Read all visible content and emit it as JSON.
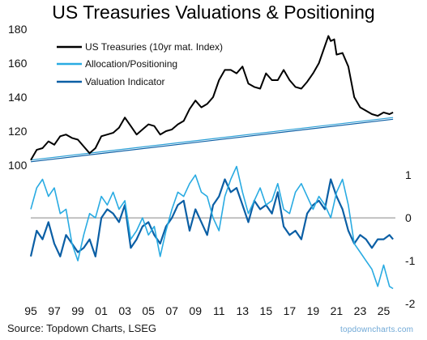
{
  "title": "US Treasuries Valuations & Positioning",
  "source": "Source: Topdown Charts, LSEG",
  "watermark": "topdowncharts.com",
  "colors": {
    "treasury": "#000000",
    "allocation": "#29abe2",
    "valuation": "#0b5fa5",
    "trend": "#2a9fd6",
    "zero": "#888888",
    "text": "#111111"
  },
  "chart_data": [
    {
      "type": "line",
      "panel": "top",
      "ylim": [
        100,
        180
      ],
      "yticks": [
        100,
        120,
        140,
        160,
        180
      ],
      "legend_position": "top-left",
      "series": [
        {
          "name": "US Treasuries (10yr mat. Index)",
          "x": [
            1995.0,
            1995.5,
            1996.0,
            1996.5,
            1997.0,
            1997.5,
            1998.0,
            1998.5,
            1999.0,
            1999.5,
            2000.0,
            2000.5,
            2001.0,
            2001.5,
            2002.0,
            2002.5,
            2003.0,
            2003.5,
            2004.0,
            2004.5,
            2005.0,
            2005.5,
            2006.0,
            2006.5,
            2007.0,
            2007.5,
            2008.0,
            2008.5,
            2009.0,
            2009.5,
            2010.0,
            2010.5,
            2011.0,
            2011.5,
            2012.0,
            2012.5,
            2013.0,
            2013.5,
            2014.0,
            2014.5,
            2015.0,
            2015.5,
            2016.0,
            2016.5,
            2017.0,
            2017.5,
            2018.0,
            2018.5,
            2019.0,
            2019.5,
            2020.0,
            2020.3,
            2020.5,
            2020.8,
            2021.0,
            2021.5,
            2022.0,
            2022.5,
            2023.0,
            2023.5,
            2024.0,
            2024.5,
            2025.0,
            2025.5,
            2025.8
          ],
          "values": [
            103,
            109,
            110,
            114,
            112,
            117,
            118,
            116,
            115,
            111,
            107,
            110,
            117,
            118,
            119,
            122,
            128,
            123,
            118,
            121,
            124,
            123,
            118,
            120,
            121,
            124,
            126,
            133,
            138,
            134,
            136,
            140,
            150,
            156,
            156,
            154,
            158,
            148,
            146,
            145,
            154,
            150,
            150,
            156,
            150,
            146,
            145,
            149,
            154,
            160,
            170,
            176,
            173,
            174,
            165,
            166,
            158,
            140,
            134,
            132,
            130,
            129,
            131,
            130,
            131
          ]
        },
        {
          "name": "Allocation/Positioning",
          "x": [
            1995.0,
            2025.8
          ],
          "values": [
            103.0,
            128.0
          ]
        },
        {
          "name": "Valuation Indicator",
          "x": [
            1995.0,
            2025.8
          ],
          "values": [
            102.0,
            127.0
          ]
        }
      ]
    },
    {
      "type": "line",
      "panel": "bottom",
      "ylim": [
        -2,
        1.4
      ],
      "yticks": [
        1,
        0,
        -1,
        -2
      ],
      "x_ticks": [
        "95",
        "97",
        "99",
        "01",
        "03",
        "05",
        "07",
        "09",
        "11",
        "13",
        "15",
        "17",
        "19",
        "21",
        "23",
        "25"
      ],
      "x_tick_years": [
        1995,
        1997,
        1999,
        2001,
        2003,
        2005,
        2007,
        2009,
        2011,
        2013,
        2015,
        2017,
        2019,
        2021,
        2023,
        2025
      ],
      "xlim": [
        1995,
        2026
      ],
      "series": [
        {
          "name": "Allocation/Positioning",
          "x": [
            1995.0,
            1995.5,
            1996.0,
            1996.5,
            1997.0,
            1997.5,
            1998.0,
            1998.5,
            1999.0,
            1999.5,
            2000.0,
            2000.5,
            2001.0,
            2001.5,
            2002.0,
            2002.5,
            2003.0,
            2003.5,
            2004.0,
            2004.5,
            2005.0,
            2005.5,
            2006.0,
            2006.5,
            2007.0,
            2007.5,
            2008.0,
            2008.5,
            2009.0,
            2009.5,
            2010.0,
            2010.5,
            2011.0,
            2011.5,
            2012.0,
            2012.5,
            2013.0,
            2013.5,
            2014.0,
            2014.5,
            2015.0,
            2015.5,
            2016.0,
            2016.5,
            2017.0,
            2017.5,
            2018.0,
            2018.5,
            2019.0,
            2019.5,
            2020.0,
            2020.5,
            2021.0,
            2021.5,
            2022.0,
            2022.5,
            2023.0,
            2023.5,
            2024.0,
            2024.5,
            2025.0,
            2025.5,
            2025.8
          ],
          "values": [
            0.2,
            0.7,
            0.9,
            0.5,
            0.7,
            0.1,
            0.2,
            -0.6,
            -1.0,
            -0.4,
            0.1,
            0.0,
            0.5,
            0.3,
            0.6,
            0.2,
            0.4,
            -0.5,
            -0.3,
            0.0,
            -0.4,
            -0.2,
            -0.9,
            -0.3,
            0.2,
            0.6,
            0.5,
            0.8,
            1.0,
            0.6,
            0.5,
            0.0,
            -0.3,
            0.5,
            0.9,
            1.2,
            0.6,
            0.1,
            0.4,
            0.7,
            0.3,
            0.4,
            0.8,
            0.2,
            0.1,
            0.6,
            0.8,
            0.5,
            0.2,
            0.5,
            0.3,
            0.0,
            0.6,
            0.9,
            0.3,
            -0.6,
            -0.8,
            -1.0,
            -1.2,
            -1.6,
            -1.1,
            -1.6,
            -1.65
          ]
        },
        {
          "name": "Valuation Indicator",
          "x": [
            1995.0,
            1995.5,
            1996.0,
            1996.5,
            1997.0,
            1997.5,
            1998.0,
            1998.5,
            1999.0,
            1999.5,
            2000.0,
            2000.5,
            2001.0,
            2001.5,
            2002.0,
            2002.5,
            2003.0,
            2003.5,
            2004.0,
            2004.5,
            2005.0,
            2005.5,
            2006.0,
            2006.5,
            2007.0,
            2007.5,
            2008.0,
            2008.5,
            2009.0,
            2009.5,
            2010.0,
            2010.5,
            2011.0,
            2011.5,
            2012.0,
            2012.5,
            2013.0,
            2013.5,
            2014.0,
            2014.5,
            2015.0,
            2015.5,
            2016.0,
            2016.5,
            2017.0,
            2017.5,
            2018.0,
            2018.5,
            2019.0,
            2019.5,
            2020.0,
            2020.5,
            2021.0,
            2021.5,
            2022.0,
            2022.5,
            2023.0,
            2023.5,
            2024.0,
            2024.5,
            2025.0,
            2025.5,
            2025.8
          ],
          "values": [
            -0.9,
            -0.3,
            -0.5,
            -0.1,
            -0.6,
            -0.9,
            -0.4,
            -0.6,
            -0.8,
            -0.7,
            -0.5,
            -0.9,
            0.0,
            0.2,
            0.1,
            -0.1,
            0.3,
            -0.7,
            -0.5,
            -0.2,
            -0.1,
            -0.4,
            -0.6,
            -0.2,
            0.0,
            0.3,
            0.4,
            -0.3,
            0.2,
            -0.1,
            -0.4,
            0.3,
            0.5,
            0.9,
            0.6,
            0.7,
            0.3,
            -0.1,
            0.4,
            0.2,
            0.3,
            0.1,
            0.6,
            -0.2,
            -0.4,
            -0.3,
            -0.5,
            0.1,
            0.3,
            0.4,
            0.2,
            0.9,
            0.5,
            0.2,
            -0.3,
            -0.6,
            -0.4,
            -0.5,
            -0.7,
            -0.5,
            -0.5,
            -0.4,
            -0.5
          ]
        }
      ]
    }
  ]
}
